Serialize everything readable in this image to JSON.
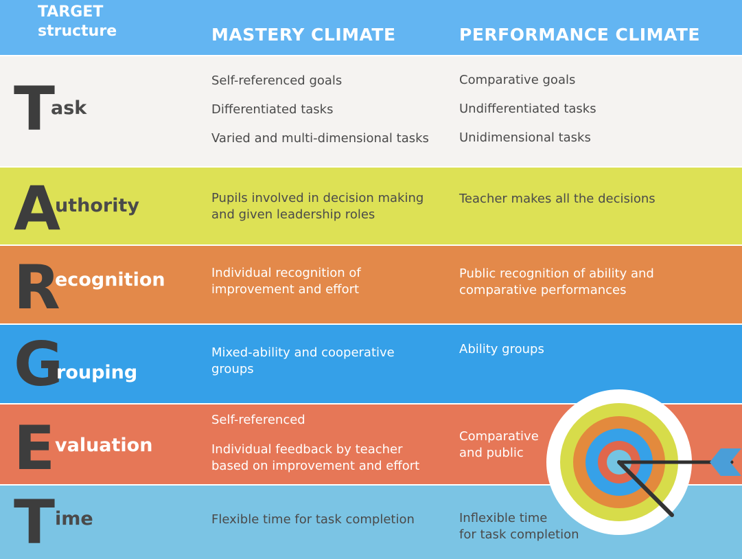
{
  "header": {
    "title_line1": "TARGET",
    "title_line2": "structure",
    "mastery_label": "MASTERY CLIMATE",
    "performance_label": "PERFORMANCE CLIMATE"
  },
  "colors": {
    "header": "#63b5f2",
    "task": "#f5f3f1",
    "authority": "#dde155",
    "recognition": "#e3894a",
    "grouping": "#35a0e8",
    "evaluation": "#e67757",
    "time": "#7bc4e4",
    "initial_letters": "#3d3d3d"
  },
  "rows": [
    {
      "initial": "T",
      "rest": "ask",
      "mastery": [
        "Self-referenced goals",
        "Differentiated tasks",
        "Varied and multi-dimensional tasks"
      ],
      "performance": [
        "Comparative goals",
        "Undifferentiated tasks",
        "Unidimensional tasks"
      ]
    },
    {
      "initial": "A",
      "rest": "uthority",
      "mastery": [
        "Pupils involved in decision making",
        "and given leadership roles"
      ],
      "performance": [
        "Teacher makes all the decisions"
      ]
    },
    {
      "initial": "R",
      "rest": "ecognition",
      "mastery": [
        "Individual recognition of",
        "improvement and effort"
      ],
      "performance": [
        "Public recognition of ability and",
        "comparative performances"
      ]
    },
    {
      "initial": "G",
      "rest": "rouping",
      "mastery": [
        "Mixed-ability and cooperative",
        "groups"
      ],
      "performance": [
        "Ability groups"
      ]
    },
    {
      "initial": "E",
      "rest": "valuation",
      "mastery": [
        "Self-referenced",
        "Individual feedback by teacher",
        "based on improvement and effort"
      ],
      "performance": [
        "Comparative",
        "and public"
      ]
    },
    {
      "initial": "T",
      "rest": "ime",
      "mastery": [
        "Flexible time for task completion"
      ],
      "performance": [
        "Inflexible time",
        "for task completion"
      ]
    }
  ],
  "target_icon": {
    "icon": "target-with-arrow-icon",
    "ring_colors": [
      "#d7dc4a",
      "#e38a3d",
      "#36a1e8",
      "#e0674c",
      "#74c4e2"
    ],
    "arrow_color": "#333333",
    "fletching_color": "#4a9ed8"
  }
}
